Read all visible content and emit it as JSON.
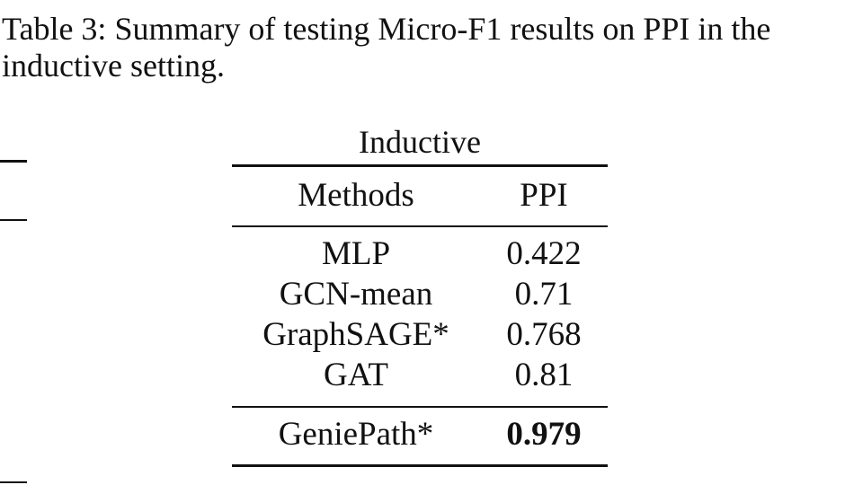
{
  "caption": "Table 3: Summary of testing Micro-F1 results on PPI in the inductive setting.",
  "table": {
    "group_header": "Inductive",
    "col_methods": "Methods",
    "col_dataset": "PPI",
    "rows": [
      {
        "method": "MLP",
        "value": "0.422"
      },
      {
        "method": "GCN-mean",
        "value": "0.71"
      },
      {
        "method": "GraphSAGE*",
        "value": "0.768"
      },
      {
        "method": "GAT",
        "value": "0.81"
      }
    ],
    "best": {
      "method": "GeniePath*",
      "value": "0.979"
    }
  }
}
